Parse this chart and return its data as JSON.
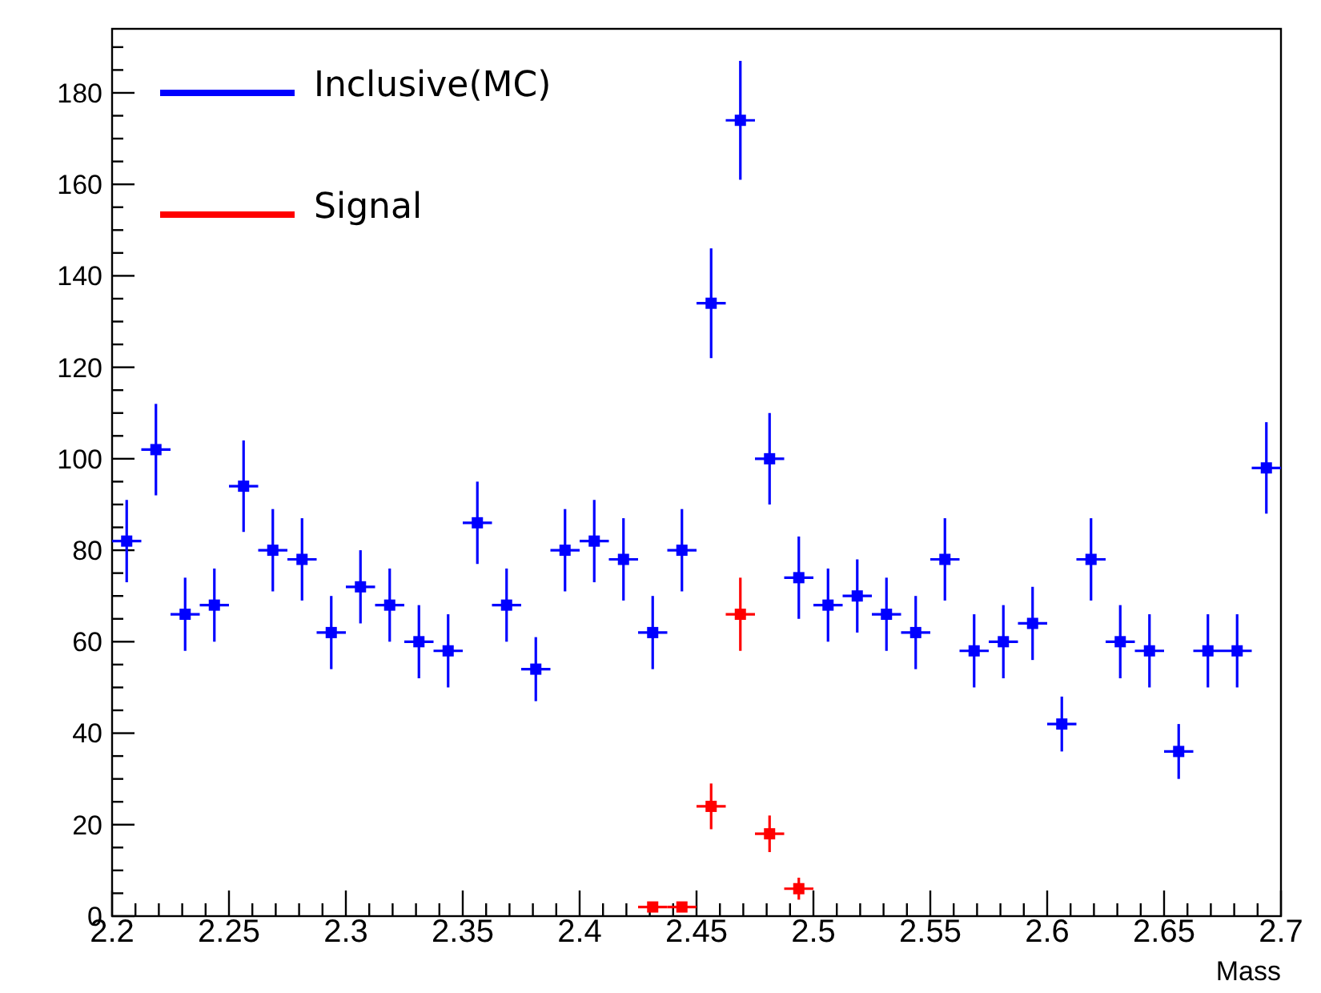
{
  "chart_data": {
    "type": "scatter",
    "xlabel": "Mass",
    "xlim": [
      2.2,
      2.7
    ],
    "xticks": [
      2.2,
      2.25,
      2.3,
      2.35,
      2.4,
      2.45,
      2.5,
      2.55,
      2.6,
      2.65,
      2.7
    ],
    "ylim": [
      0,
      194
    ],
    "yticks": [
      0,
      20,
      40,
      60,
      80,
      100,
      120,
      140,
      160,
      180
    ],
    "grid": false,
    "legend": "top left",
    "marker": "square",
    "series": [
      {
        "name": "Inclusive(MC)",
        "color": "#0000ff",
        "x": [
          2.20625,
          2.21875,
          2.23125,
          2.24375,
          2.25625,
          2.26875,
          2.28125,
          2.29375,
          2.30625,
          2.31875,
          2.33125,
          2.34375,
          2.35625,
          2.36875,
          2.38125,
          2.39375,
          2.40625,
          2.41875,
          2.43125,
          2.44375,
          2.45625,
          2.46875,
          2.48125,
          2.49375,
          2.50625,
          2.51875,
          2.53125,
          2.54375,
          2.55625,
          2.56875,
          2.58125,
          2.59375,
          2.60625,
          2.61875,
          2.63125,
          2.64375,
          2.65625,
          2.66875,
          2.68125,
          2.69375
        ],
        "values": [
          82,
          102,
          66,
          68,
          94,
          80,
          78,
          62,
          72,
          68,
          60,
          58,
          86,
          68,
          54,
          80,
          82,
          78,
          62,
          80,
          134,
          174,
          100,
          74,
          68,
          70,
          66,
          62,
          78,
          58,
          60,
          64,
          42,
          78,
          60,
          58,
          36,
          58,
          58,
          98
        ],
        "errors": [
          9,
          10,
          8,
          8,
          10,
          9,
          9,
          8,
          8,
          8,
          8,
          8,
          9,
          8,
          7,
          9,
          9,
          9,
          8,
          9,
          12,
          13,
          10,
          9,
          8,
          8,
          8,
          8,
          9,
          8,
          8,
          8,
          6,
          9,
          8,
          8,
          6,
          8,
          8,
          10
        ],
        "xerrors": [
          0.00625,
          0.00625,
          0.00625,
          0.00625,
          0.00625,
          0.00625,
          0.00625,
          0.00625,
          0.00625,
          0.00625,
          0.00625,
          0.00625,
          0.00625,
          0.00625,
          0.00625,
          0.00625,
          0.00625,
          0.00625,
          0.00625,
          0.00625,
          0.00625,
          0.00625,
          0.00625,
          0.00625,
          0.00625,
          0.00625,
          0.00625,
          0.00625,
          0.00625,
          0.00625,
          0.00625,
          0.00625,
          0.00625,
          0.00625,
          0.00625,
          0.00625,
          0.00625,
          0.00625,
          0.00625,
          0.00625
        ]
      },
      {
        "name": "Signal",
        "color": "#ff0000",
        "x": [
          2.43125,
          2.44375,
          2.45625,
          2.46875,
          2.48125,
          2.49375
        ],
        "values": [
          2,
          2,
          24,
          66,
          18,
          6
        ],
        "errors": [
          null,
          null,
          5,
          8,
          4,
          2.4
        ],
        "xerrors": [
          0.00625,
          0.00625,
          0.00625,
          0.00625,
          0.00625,
          0.00625
        ]
      }
    ]
  }
}
